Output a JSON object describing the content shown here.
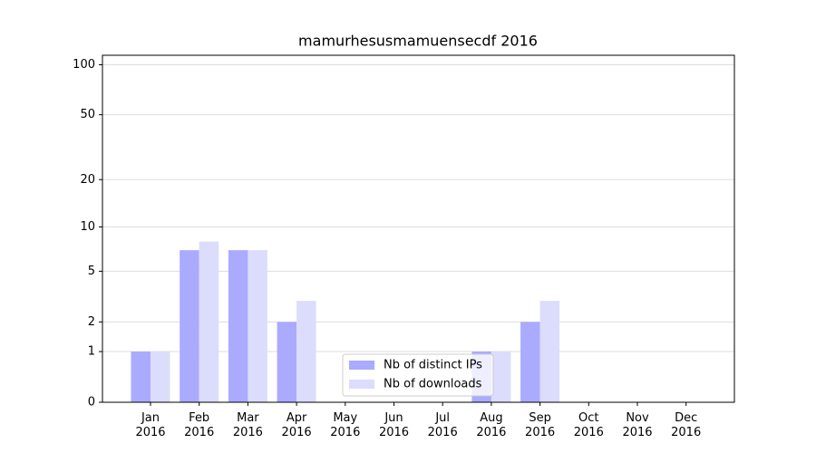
{
  "chart_data": {
    "type": "bar",
    "title": "mamurhesusmamuensecdf 2016",
    "categories": [
      "Jan\n2016",
      "Feb\n2016",
      "Mar\n2016",
      "Apr\n2016",
      "May\n2016",
      "Jun\n2016",
      "Jul\n2016",
      "Aug\n2016",
      "Sep\n2016",
      "Oct\n2016",
      "Nov\n2016",
      "Dec\n2016"
    ],
    "series": [
      {
        "name": "Nb of distinct IPs",
        "color": "#aaaaff",
        "values": [
          1,
          7,
          7,
          2,
          0,
          0,
          0,
          1,
          2,
          0,
          0,
          0
        ]
      },
      {
        "name": "Nb of downloads",
        "color": "#dcdcfc",
        "values": [
          1,
          8,
          7,
          3,
          0,
          0,
          0,
          1,
          3,
          0,
          0,
          0
        ]
      }
    ],
    "yscale": "log1p",
    "ylim": [
      0,
      114
    ],
    "yticks": [
      0,
      1,
      2,
      5,
      10,
      20,
      50,
      100
    ],
    "grid": true,
    "legend": "lower center"
  }
}
